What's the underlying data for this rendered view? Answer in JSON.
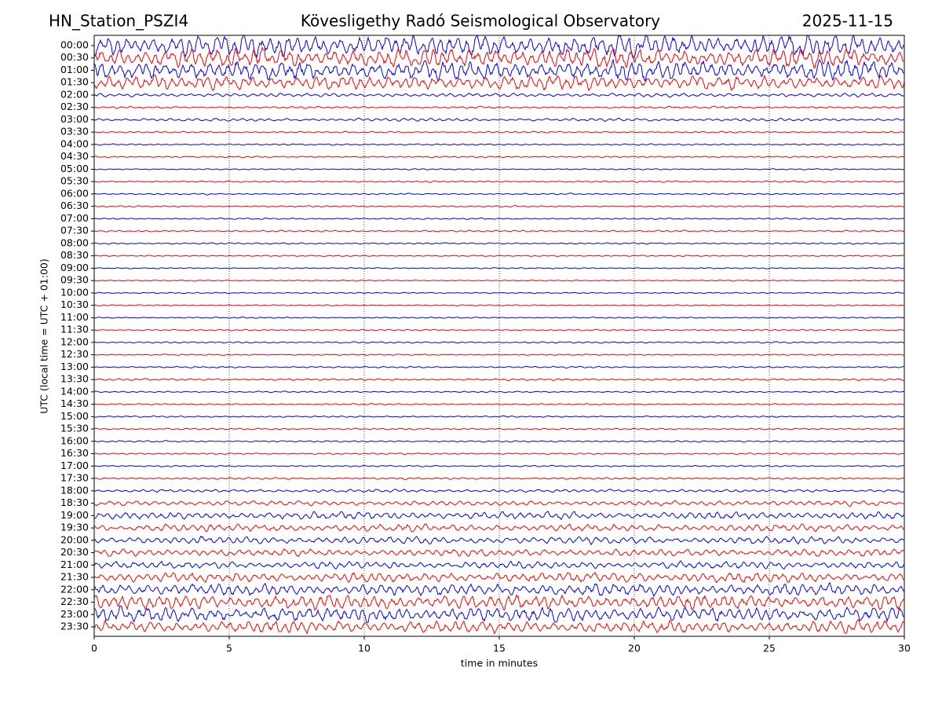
{
  "chart_data": {
    "type": "helicorder",
    "station": "HN_Station_PSZI4",
    "title": "Kövesligethy Radó Seismological Observatory",
    "date": "2025-11-15",
    "ylabel": "UTC (local time = UTC + 01:00)",
    "xlabel": "time in minutes",
    "xlim": [
      0,
      30
    ],
    "xticks": [
      0,
      5,
      10,
      15,
      20,
      25,
      30
    ],
    "grid": true,
    "colors": [
      "#0000ff",
      "#ff0000"
    ],
    "categories": [
      "00:00",
      "00:30",
      "01:00",
      "01:30",
      "02:00",
      "02:30",
      "03:00",
      "03:30",
      "04:00",
      "04:30",
      "05:00",
      "05:30",
      "06:00",
      "06:30",
      "07:00",
      "07:30",
      "08:00",
      "08:30",
      "09:00",
      "09:30",
      "10:00",
      "10:30",
      "11:00",
      "11:30",
      "12:00",
      "12:30",
      "13:00",
      "13:30",
      "14:00",
      "14:30",
      "15:00",
      "15:30",
      "16:00",
      "16:30",
      "17:00",
      "17:30",
      "18:00",
      "18:30",
      "19:00",
      "19:30",
      "20:00",
      "20:30",
      "21:00",
      "21:30",
      "22:00",
      "22:30",
      "23:00",
      "23:30"
    ],
    "amplitudes": [
      0.9,
      0.8,
      0.8,
      0.6,
      0.15,
      0.08,
      0.12,
      0.06,
      0.06,
      0.06,
      0.05,
      0.06,
      0.06,
      0.06,
      0.06,
      0.06,
      0.06,
      0.05,
      0.05,
      0.05,
      0.05,
      0.05,
      0.05,
      0.05,
      0.06,
      0.05,
      0.06,
      0.08,
      0.06,
      0.06,
      0.06,
      0.06,
      0.06,
      0.06,
      0.06,
      0.08,
      0.12,
      0.2,
      0.3,
      0.3,
      0.3,
      0.3,
      0.3,
      0.4,
      0.5,
      0.6,
      0.6,
      0.5
    ]
  }
}
